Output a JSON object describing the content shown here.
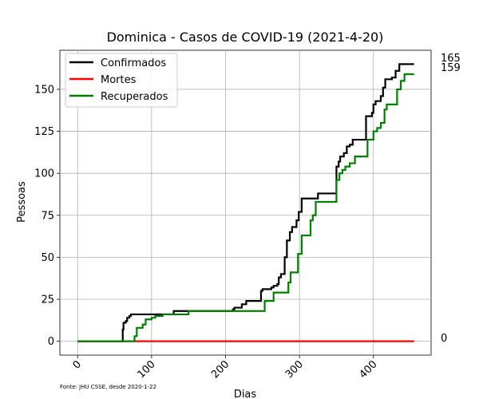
{
  "chart_data": {
    "type": "line",
    "title": "Dominica - Casos de COVID-19 (2021-4-20)",
    "xlabel": "Dias",
    "ylabel": "Pessoas",
    "source_note": "Fonte: JHU CSSE, desde 2020-1-22",
    "xlim": [
      -24,
      478
    ],
    "ylim": [
      -8.25,
      173.25
    ],
    "x_ticks": [
      0,
      100,
      200,
      300,
      400
    ],
    "y_ticks": [
      0,
      25,
      50,
      75,
      100,
      125,
      150
    ],
    "grid": true,
    "legend_position": "upper-left",
    "series": [
      {
        "name": "Confirmados",
        "color": "#000000",
        "points": [
          [
            0,
            0
          ],
          [
            60,
            0
          ],
          [
            61,
            7
          ],
          [
            62,
            11
          ],
          [
            65,
            12
          ],
          [
            67,
            14
          ],
          [
            70,
            15
          ],
          [
            72,
            16
          ],
          [
            128,
            16
          ],
          [
            130,
            18
          ],
          [
            205,
            18
          ],
          [
            210,
            19
          ],
          [
            212,
            20
          ],
          [
            222,
            22
          ],
          [
            228,
            24
          ],
          [
            245,
            24
          ],
          [
            248,
            30
          ],
          [
            250,
            31
          ],
          [
            262,
            32
          ],
          [
            265,
            33
          ],
          [
            270,
            34
          ],
          [
            272,
            38
          ],
          [
            275,
            40
          ],
          [
            280,
            50
          ],
          [
            283,
            60
          ],
          [
            287,
            65
          ],
          [
            290,
            68
          ],
          [
            296,
            72
          ],
          [
            299,
            77
          ],
          [
            303,
            85
          ],
          [
            318,
            85
          ],
          [
            325,
            88
          ],
          [
            345,
            88
          ],
          [
            350,
            104
          ],
          [
            353,
            107
          ],
          [
            355,
            110
          ],
          [
            360,
            112
          ],
          [
            364,
            116
          ],
          [
            368,
            117
          ],
          [
            372,
            120
          ],
          [
            388,
            120
          ],
          [
            390,
            134
          ],
          [
            398,
            136
          ],
          [
            400,
            141
          ],
          [
            403,
            143
          ],
          [
            410,
            146
          ],
          [
            413,
            151
          ],
          [
            416,
            156
          ],
          [
            425,
            157
          ],
          [
            430,
            161
          ],
          [
            435,
            165
          ],
          [
            455,
            165
          ]
        ]
      },
      {
        "name": "Mortes",
        "color": "#ff0000",
        "points": [
          [
            0,
            0
          ],
          [
            455,
            0
          ]
        ]
      },
      {
        "name": "Recuperados",
        "color": "#008000",
        "points": [
          [
            0,
            0
          ],
          [
            75,
            0
          ],
          [
            77,
            3
          ],
          [
            80,
            8
          ],
          [
            88,
            10
          ],
          [
            92,
            13
          ],
          [
            100,
            14
          ],
          [
            105,
            15
          ],
          [
            115,
            16
          ],
          [
            148,
            16
          ],
          [
            150,
            18
          ],
          [
            250,
            18
          ],
          [
            253,
            24
          ],
          [
            262,
            24
          ],
          [
            265,
            29
          ],
          [
            280,
            29
          ],
          [
            285,
            35
          ],
          [
            288,
            41
          ],
          [
            296,
            41
          ],
          [
            298,
            52
          ],
          [
            303,
            63
          ],
          [
            313,
            63
          ],
          [
            315,
            72
          ],
          [
            318,
            75
          ],
          [
            322,
            83
          ],
          [
            346,
            83
          ],
          [
            350,
            96
          ],
          [
            354,
            100
          ],
          [
            358,
            102
          ],
          [
            362,
            104
          ],
          [
            368,
            106
          ],
          [
            375,
            110
          ],
          [
            388,
            110
          ],
          [
            392,
            120
          ],
          [
            400,
            125
          ],
          [
            405,
            127
          ],
          [
            410,
            130
          ],
          [
            415,
            138
          ],
          [
            418,
            141
          ],
          [
            428,
            141
          ],
          [
            432,
            150
          ],
          [
            437,
            155
          ],
          [
            442,
            159
          ],
          [
            455,
            159
          ]
        ]
      }
    ],
    "end_labels": [
      "165",
      "159",
      "0"
    ]
  }
}
